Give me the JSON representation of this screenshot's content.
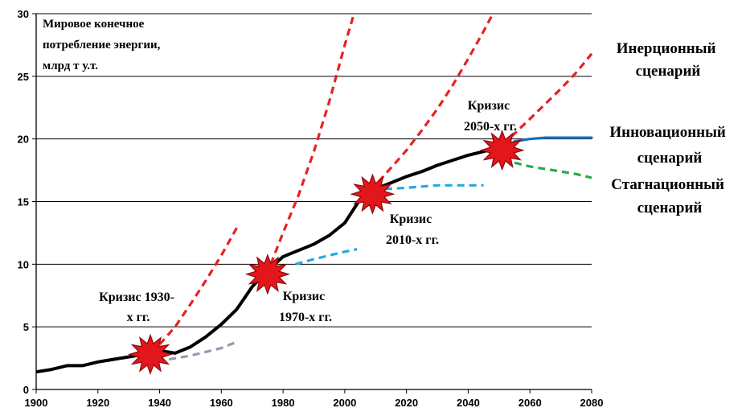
{
  "chart_data": {
    "type": "line",
    "title_lines": [
      "Мировое конечное",
      "потребление энергии,",
      "млрд т у.т."
    ],
    "xlim": [
      1900,
      2080
    ],
    "ylim": [
      0,
      30
    ],
    "x_ticks": [
      1900,
      1920,
      1940,
      1960,
      1980,
      2000,
      2020,
      2040,
      2060,
      2080
    ],
    "y_ticks": [
      0,
      5,
      10,
      15,
      20,
      25,
      30
    ],
    "grid": "horizontal",
    "series": [
      {
        "role": "main",
        "color": "#000000",
        "style": "solid",
        "x": [
          1900,
          1905,
          1910,
          1915,
          1920,
          1925,
          1930,
          1935,
          1940,
          1945,
          1950,
          1955,
          1960,
          1965,
          1970,
          1975,
          1980,
          1985,
          1990,
          1995,
          2000,
          2005,
          2010,
          2015,
          2020,
          2025,
          2030,
          2035,
          2040,
          2045,
          2050
        ],
        "y": [
          1.4,
          1.6,
          1.9,
          1.9,
          2.2,
          2.4,
          2.6,
          2.8,
          3.1,
          2.9,
          3.4,
          4.2,
          5.2,
          6.4,
          8.2,
          9.5,
          10.6,
          11.1,
          11.6,
          12.3,
          13.3,
          15.2,
          16.0,
          16.5,
          17.0,
          17.4,
          17.9,
          18.3,
          18.7,
          19.0,
          19.3
        ]
      },
      {
        "role": "growth-1930",
        "color": "#e8211f",
        "style": "dashed",
        "x": [
          1940,
          1945,
          1950,
          1955,
          1960,
          1965
        ],
        "y": [
          3.6,
          5.0,
          6.8,
          8.7,
          10.7,
          12.9
        ]
      },
      {
        "role": "stagnation-1930",
        "color": "#9b97b0",
        "style": "dashed",
        "x": [
          1943,
          1950,
          1955,
          1960,
          1965
        ],
        "y": [
          2.4,
          2.7,
          3.0,
          3.3,
          3.8
        ]
      },
      {
        "role": "growth-1970",
        "color": "#e8211f",
        "style": "dashed",
        "x": [
          1976,
          1980,
          1985,
          1990,
          1995,
          2000,
          2003
        ],
        "y": [
          10.0,
          12.5,
          15.5,
          19.0,
          23.0,
          27.5,
          30.0
        ]
      },
      {
        "role": "stagnation-1970",
        "color": "#29a7e0",
        "style": "dashed",
        "x": [
          1984,
          1990,
          1995,
          2000,
          2004
        ],
        "y": [
          10.0,
          10.4,
          10.7,
          11.0,
          11.2
        ]
      },
      {
        "role": "growth-2010",
        "color": "#e8211f",
        "style": "dashed",
        "x": [
          2011,
          2015,
          2020,
          2025,
          2030,
          2035,
          2040,
          2045,
          2048
        ],
        "y": [
          16.6,
          17.7,
          19.1,
          20.7,
          22.4,
          24.3,
          26.4,
          28.6,
          30.0
        ]
      },
      {
        "role": "stagnation-2010",
        "color": "#29a7e0",
        "style": "dashed",
        "x": [
          2013,
          2020,
          2025,
          2030,
          2035,
          2040,
          2045
        ],
        "y": [
          16.0,
          16.1,
          16.2,
          16.3,
          16.3,
          16.3,
          16.3
        ]
      },
      {
        "role": "inertial",
        "color": "#e8211f",
        "style": "dashed",
        "x": [
          2054,
          2060,
          2065,
          2070,
          2075,
          2080
        ],
        "y": [
          20.2,
          21.6,
          22.8,
          24.0,
          25.3,
          26.8
        ]
      },
      {
        "role": "innovative",
        "color": "#1b6fb5",
        "style": "solid",
        "x": [
          2055,
          2060,
          2065,
          2070,
          2075,
          2080
        ],
        "y": [
          19.8,
          20.0,
          20.1,
          20.1,
          20.1,
          20.1
        ]
      },
      {
        "role": "stagnation-2050",
        "color": "#2aa84a",
        "style": "dashed",
        "x": [
          2055,
          2060,
          2065,
          2070,
          2075,
          2080
        ],
        "y": [
          18.1,
          17.8,
          17.6,
          17.4,
          17.2,
          16.9
        ]
      }
    ],
    "crises": [
      {
        "x": 1937,
        "y": 2.8
      },
      {
        "x": 1975,
        "y": 9.2
      },
      {
        "x": 2009,
        "y": 15.6
      },
      {
        "x": 2051,
        "y": 19.1
      }
    ],
    "crisis_labels": [
      {
        "lines": [
          "Кризис 1930-",
          "х гг."
        ]
      },
      {
        "lines": [
          "Кризис",
          "1970-х гг."
        ]
      },
      {
        "lines": [
          "Кризис",
          "2010-х гг."
        ]
      },
      {
        "lines": [
          "Кризис",
          "2050-х гг."
        ]
      }
    ],
    "scenario_labels": [
      {
        "lines": [
          "Инерционный",
          "сценарий"
        ]
      },
      {
        "lines": [
          "Инновационный",
          "сценарий"
        ]
      },
      {
        "lines": [
          "Стагнационный",
          "сценарий"
        ]
      }
    ],
    "crisis_color": "#e3161b"
  }
}
